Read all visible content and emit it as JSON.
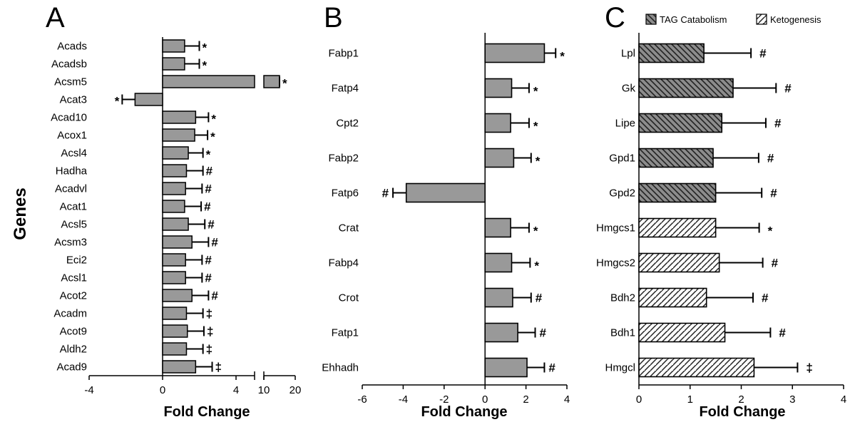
{
  "ylabel": "Genes",
  "legend": [
    {
      "label": "TAG Catabolism",
      "pattern": "catab"
    },
    {
      "label": "Ketogenesis",
      "pattern": "keto"
    }
  ],
  "chart_data": [
    {
      "type": "bar",
      "orientation": "horizontal",
      "panel": "A",
      "xlabel": "Fold  Change",
      "xlim": [
        -4,
        20
      ],
      "broken_axis": {
        "linear_range": [
          -4,
          5
        ],
        "break_ticks": [
          10,
          20
        ]
      },
      "xticks": [
        "-4",
        "0",
        "4",
        "10",
        "20"
      ],
      "categories": [
        "Acads",
        "Acadsb",
        "Acsm5",
        "Acat3",
        "Acad10",
        "Acox1",
        "Acsl4",
        "Hadha",
        "Acadvl",
        "Acat1",
        "Acsl5",
        "Acsm3",
        "Eci2",
        "Acsl1",
        "Acot2",
        "Acadm",
        "Acot9",
        "Aldh2",
        "Acad9"
      ],
      "values": [
        1.2,
        1.2,
        15,
        -1.5,
        1.8,
        1.75,
        1.4,
        1.3,
        1.25,
        1.2,
        1.4,
        1.6,
        1.25,
        1.25,
        1.6,
        1.3,
        1.35,
        1.3,
        1.8
      ],
      "errors": [
        0.8,
        0.8,
        1.0,
        0.7,
        0.7,
        0.7,
        0.8,
        0.9,
        0.9,
        0.9,
        0.9,
        0.9,
        0.9,
        0.9,
        0.9,
        0.9,
        0.9,
        0.9,
        0.9
      ],
      "significance": [
        "*",
        "*",
        "*",
        "*",
        "*",
        "*",
        "*",
        "#",
        "#",
        "#",
        "#",
        "#",
        "#",
        "#",
        "#",
        "‡",
        "‡",
        "‡",
        "‡"
      ],
      "bar_color": "#999999"
    },
    {
      "type": "bar",
      "orientation": "horizontal",
      "panel": "B",
      "xlabel": "Fold  Change",
      "xlim": [
        -6,
        4
      ],
      "xticks": [
        "-6",
        "-4",
        "-2",
        "0",
        "2",
        "4"
      ],
      "categories": [
        "Fabp1",
        "Fatp4",
        "Cpt2",
        "Fabp2",
        "Fatp6",
        "Crat",
        "Fabp4",
        "Crot",
        "Fatp1",
        "Ehhadh"
      ],
      "values": [
        2.9,
        1.3,
        1.25,
        1.4,
        -3.85,
        1.25,
        1.3,
        1.35,
        1.6,
        2.05
      ],
      "errors": [
        0.55,
        0.85,
        0.9,
        0.85,
        0.65,
        0.9,
        0.9,
        0.9,
        0.85,
        0.85
      ],
      "significance": [
        "*",
        "*",
        "*",
        "*",
        "#",
        "*",
        "*",
        "#",
        "#",
        "#"
      ],
      "bar_color": "#999999"
    },
    {
      "type": "bar",
      "orientation": "horizontal",
      "panel": "C",
      "xlabel": "Fold  Change",
      "xlim": [
        0,
        4
      ],
      "xticks": [
        "0",
        "1",
        "2",
        "3",
        "4"
      ],
      "categories": [
        "Lpl",
        "Gk",
        "Lipe",
        "Gpd1",
        "Gpd2",
        "Hmgcs1",
        "Hmgcs2",
        "Bdh2",
        "Bdh1",
        "Hmgcl"
      ],
      "values": [
        1.27,
        1.84,
        1.62,
        1.45,
        1.5,
        1.5,
        1.57,
        1.32,
        1.68,
        2.25
      ],
      "errors": [
        0.92,
        0.84,
        0.86,
        0.89,
        0.9,
        0.85,
        0.85,
        0.91,
        0.89,
        0.85
      ],
      "significance": [
        "#",
        "#",
        "#",
        "#",
        "#",
        "*",
        "#",
        "#",
        "#",
        "‡"
      ],
      "group": [
        "catab",
        "catab",
        "catab",
        "catab",
        "catab",
        "keto",
        "keto",
        "keto",
        "keto",
        "keto"
      ]
    }
  ]
}
